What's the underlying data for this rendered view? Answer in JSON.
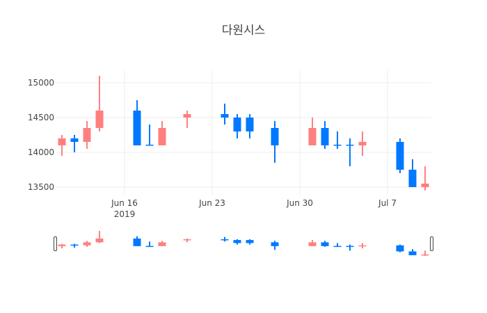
{
  "chart_data": {
    "type": "candlestick",
    "title": "다원시스",
    "xlabel": "",
    "ylabel": "",
    "ylim": [
      13400,
      15200
    ],
    "yticks": [
      13500,
      14000,
      14500,
      15000
    ],
    "xticks": [
      {
        "date": "2019-06-16",
        "label": "Jun 16",
        "sublabel": "2019"
      },
      {
        "date": "2019-06-23",
        "label": "Jun 23",
        "sublabel": ""
      },
      {
        "date": "2019-06-30",
        "label": "Jun 30",
        "sublabel": ""
      },
      {
        "date": "2019-07-07",
        "label": "Jul 7",
        "sublabel": ""
      }
    ],
    "grid": true,
    "range_slider": true,
    "increasing_color": "#ff7f7f",
    "decreasing_color": "#0078ff",
    "candles": [
      {
        "date": "2019-06-11",
        "open": 14100,
        "high": 14250,
        "low": 13950,
        "close": 14200
      },
      {
        "date": "2019-06-12",
        "open": 14200,
        "high": 14250,
        "low": 14000,
        "close": 14150
      },
      {
        "date": "2019-06-13",
        "open": 14150,
        "high": 14450,
        "low": 14050,
        "close": 14350
      },
      {
        "date": "2019-06-14",
        "open": 14350,
        "high": 15100,
        "low": 14300,
        "close": 14600
      },
      {
        "date": "2019-06-17",
        "open": 14600,
        "high": 14750,
        "low": 14100,
        "close": 14100
      },
      {
        "date": "2019-06-18",
        "open": 14110,
        "high": 14400,
        "low": 14100,
        "close": 14100
      },
      {
        "date": "2019-06-19",
        "open": 14100,
        "high": 14450,
        "low": 14100,
        "close": 14350
      },
      {
        "date": "2019-06-21",
        "open": 14500,
        "high": 14600,
        "low": 14350,
        "close": 14550
      },
      {
        "date": "2019-06-24",
        "open": 14550,
        "high": 14700,
        "low": 14400,
        "close": 14500
      },
      {
        "date": "2019-06-25",
        "open": 14500,
        "high": 14550,
        "low": 14200,
        "close": 14300
      },
      {
        "date": "2019-06-26",
        "open": 14500,
        "high": 14550,
        "low": 14200,
        "close": 14300
      },
      {
        "date": "2019-06-28",
        "open": 14350,
        "high": 14450,
        "low": 13850,
        "close": 14100
      },
      {
        "date": "2019-07-01",
        "open": 14100,
        "high": 14500,
        "low": 14100,
        "close": 14350
      },
      {
        "date": "2019-07-02",
        "open": 14350,
        "high": 14450,
        "low": 14050,
        "close": 14100
      },
      {
        "date": "2019-07-03",
        "open": 14110,
        "high": 14300,
        "low": 14050,
        "close": 14100
      },
      {
        "date": "2019-07-04",
        "open": 14110,
        "high": 14200,
        "low": 13800,
        "close": 14100
      },
      {
        "date": "2019-07-05",
        "open": 14100,
        "high": 14300,
        "low": 13950,
        "close": 14150
      },
      {
        "date": "2019-07-08",
        "open": 14150,
        "high": 14200,
        "low": 13700,
        "close": 13750
      },
      {
        "date": "2019-07-09",
        "open": 13750,
        "high": 13900,
        "low": 13500,
        "close": 13500
      },
      {
        "date": "2019-07-10",
        "open": 13500,
        "high": 13800,
        "low": 13450,
        "close": 13550
      }
    ]
  }
}
